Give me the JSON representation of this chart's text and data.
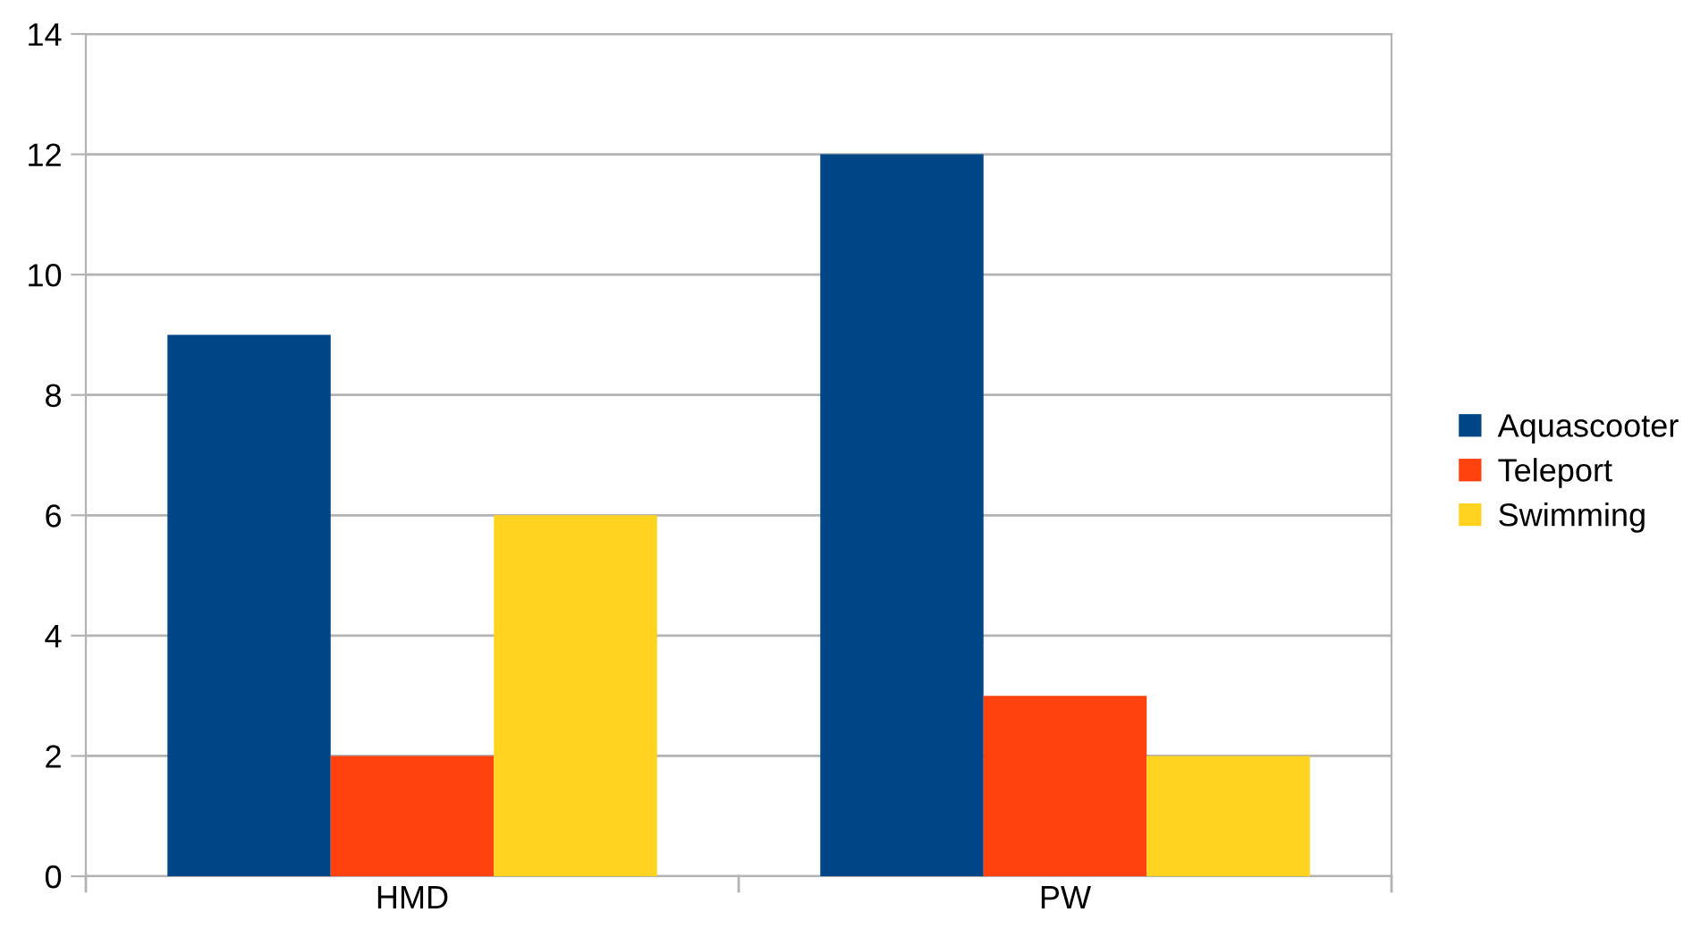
{
  "chart_data": {
    "type": "bar",
    "categories": [
      "HMD",
      "PW"
    ],
    "series": [
      {
        "name": "Aquascooter",
        "color": "#004586",
        "values": [
          9,
          12
        ]
      },
      {
        "name": "Teleport",
        "color": "#ff420e",
        "values": [
          2,
          3
        ]
      },
      {
        "name": "Swimming",
        "color": "#ffd320",
        "values": [
          6,
          2
        ]
      }
    ],
    "ylim": [
      0,
      14
    ],
    "yticks": [
      0,
      2,
      4,
      6,
      8,
      10,
      12,
      14
    ],
    "grid": "y",
    "legend": "right"
  }
}
